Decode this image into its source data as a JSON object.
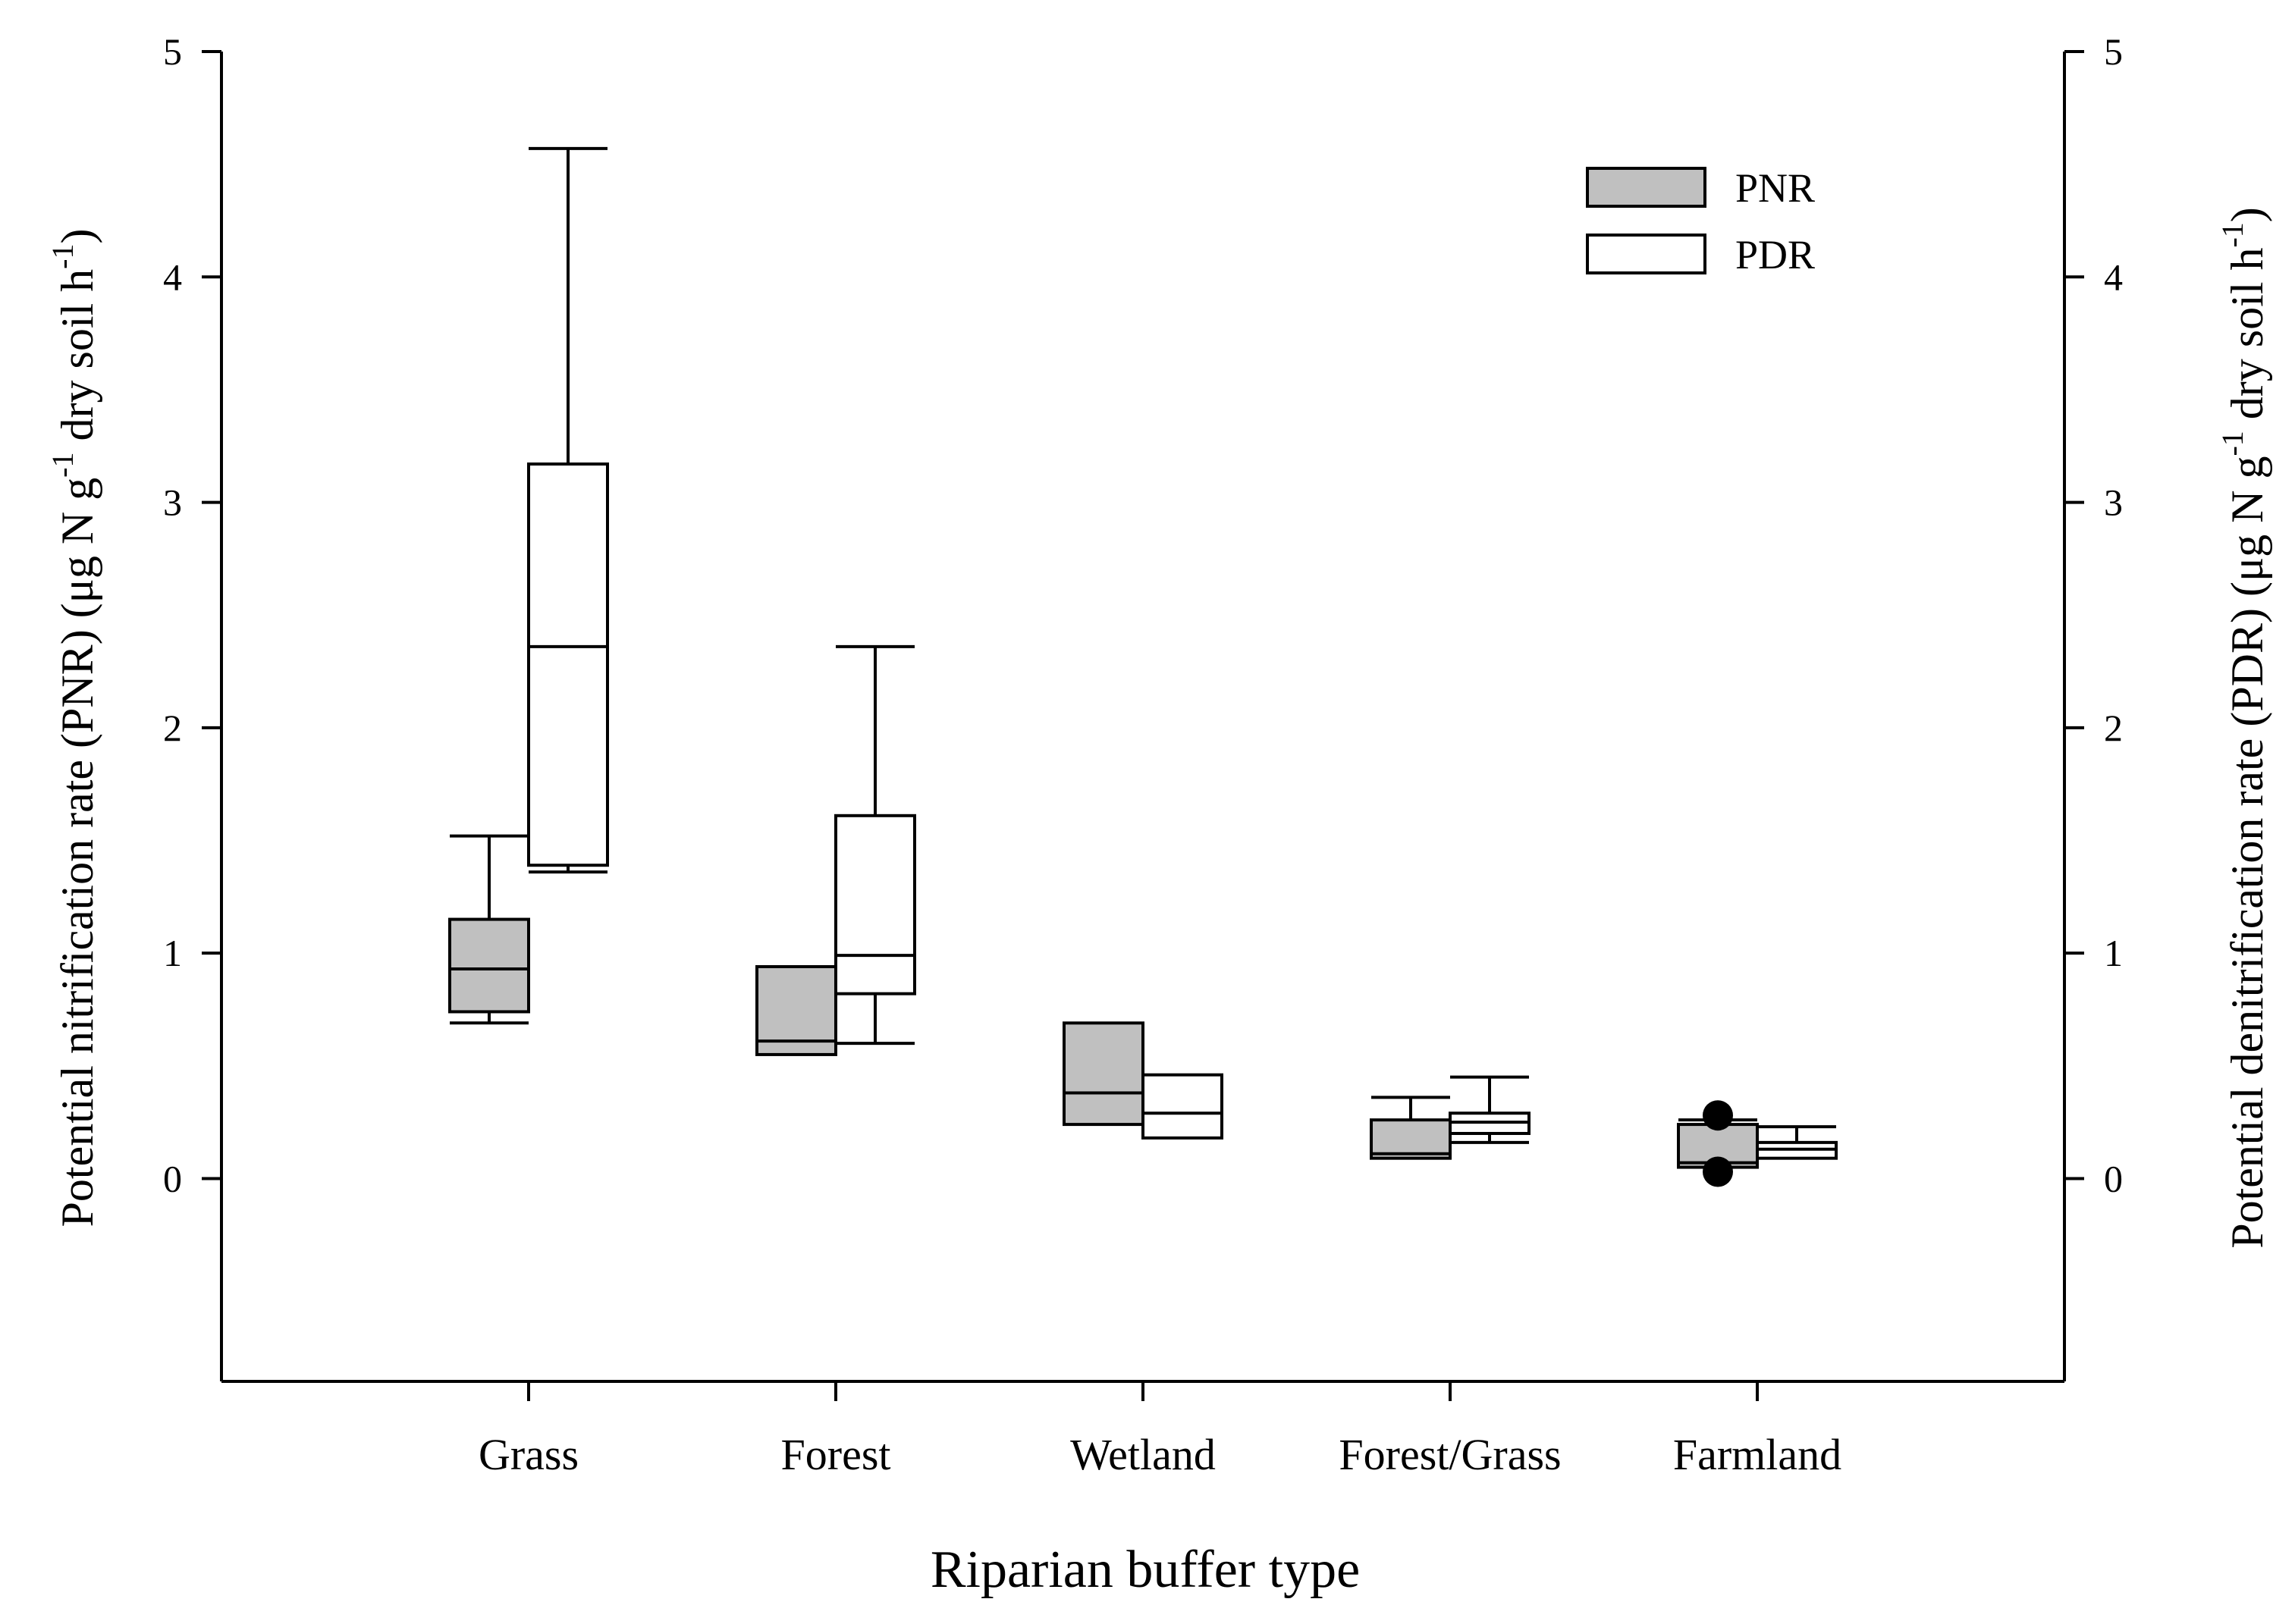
{
  "chart_data": {
    "type": "boxplot",
    "categories": [
      "Grass",
      "Forest",
      "Wetland",
      "Forest/Grass",
      "Farmland"
    ],
    "xlabel": "Riparian buffer type",
    "ylabel_left": {
      "pre": "Potential nitrification rate (PNR) (μg N g",
      "sup1": "-1",
      "mid": " dry soil h",
      "sup2": "-1",
      "post": ")"
    },
    "ylabel_right": {
      "pre": "Potential denitrification rate (PDR) (μg N g",
      "sup1": "-1",
      "mid": " dry soil h",
      "sup2": "-1",
      "post": ")"
    },
    "ylim": [
      -0.9,
      5
    ],
    "yticks": [
      0,
      1,
      2,
      3,
      4,
      5
    ],
    "ytick_labels": [
      "0",
      "1",
      "2",
      "3",
      "4",
      "5"
    ],
    "legend_position": "top-right",
    "series": [
      {
        "name": "PNR",
        "fill": "#c0c0c0",
        "boxes": [
          {
            "category": "Grass",
            "whisker_low": 0.69,
            "q1": 0.74,
            "median": 0.93,
            "q3": 1.15,
            "whisker_high": 1.52,
            "outliers": []
          },
          {
            "category": "Forest",
            "whisker_low": 0.55,
            "q1": 0.55,
            "median": 0.61,
            "q3": 0.94,
            "whisker_high": 0.94,
            "outliers": []
          },
          {
            "category": "Wetland",
            "whisker_low": 0.24,
            "q1": 0.24,
            "median": 0.38,
            "q3": 0.69,
            "whisker_high": 0.69,
            "outliers": []
          },
          {
            "category": "Forest/Grass",
            "whisker_low": 0.09,
            "q1": 0.09,
            "median": 0.11,
            "q3": 0.26,
            "whisker_high": 0.36,
            "outliers": []
          },
          {
            "category": "Farmland",
            "whisker_low": 0.05,
            "q1": 0.05,
            "median": 0.07,
            "q3": 0.24,
            "whisker_high": 0.26,
            "outliers": [
              0.28,
              0.03
            ]
          }
        ]
      },
      {
        "name": "PDR",
        "fill": "#ffffff",
        "boxes": [
          {
            "category": "Grass",
            "whisker_low": 1.36,
            "q1": 1.39,
            "median": 2.36,
            "q3": 3.17,
            "whisker_high": 4.57,
            "outliers": []
          },
          {
            "category": "Forest",
            "whisker_low": 0.6,
            "q1": 0.82,
            "median": 0.99,
            "q3": 1.61,
            "whisker_high": 2.36,
            "outliers": []
          },
          {
            "category": "Wetland",
            "whisker_low": 0.18,
            "q1": 0.18,
            "median": 0.29,
            "q3": 0.46,
            "whisker_high": 0.46,
            "outliers": []
          },
          {
            "category": "Forest/Grass",
            "whisker_low": 0.16,
            "q1": 0.2,
            "median": 0.25,
            "q3": 0.29,
            "whisker_high": 0.45,
            "outliers": []
          },
          {
            "category": "Farmland",
            "whisker_low": 0.09,
            "q1": 0.09,
            "median": 0.13,
            "q3": 0.16,
            "whisker_high": 0.23,
            "outliers": []
          }
        ]
      }
    ]
  }
}
